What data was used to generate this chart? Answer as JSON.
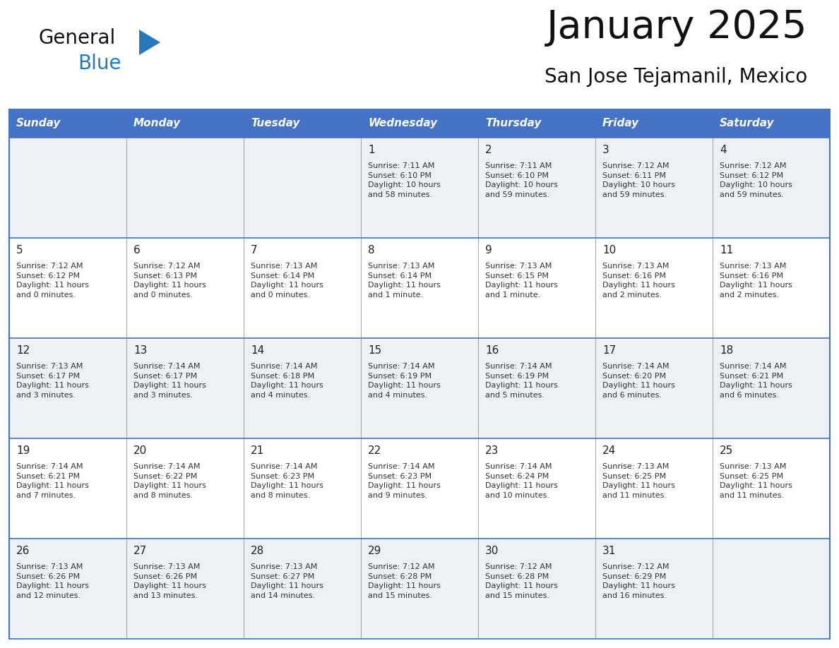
{
  "title": "January 2025",
  "subtitle": "San Jose Tejamanil, Mexico",
  "header_color": "#4472C4",
  "header_text_color": "#FFFFFF",
  "day_names": [
    "Sunday",
    "Monday",
    "Tuesday",
    "Wednesday",
    "Thursday",
    "Friday",
    "Saturday"
  ],
  "grid_line_color": "#4472C4",
  "row_alt_color": "#EEF0F7",
  "row_normal_color": "#FFFFFF",
  "day_number_color": "#222222",
  "text_color": "#333333",
  "title_color": "#111111",
  "subtitle_color": "#111111",
  "logo_general_color": "#111111",
  "logo_blue_color": "#2878BE",
  "logo_triangle_color": "#2878BE",
  "calendar": [
    [
      {
        "day": 0,
        "text": ""
      },
      {
        "day": 0,
        "text": ""
      },
      {
        "day": 0,
        "text": ""
      },
      {
        "day": 1,
        "text": "Sunrise: 7:11 AM\nSunset: 6:10 PM\nDaylight: 10 hours\nand 58 minutes."
      },
      {
        "day": 2,
        "text": "Sunrise: 7:11 AM\nSunset: 6:10 PM\nDaylight: 10 hours\nand 59 minutes."
      },
      {
        "day": 3,
        "text": "Sunrise: 7:12 AM\nSunset: 6:11 PM\nDaylight: 10 hours\nand 59 minutes."
      },
      {
        "day": 4,
        "text": "Sunrise: 7:12 AM\nSunset: 6:12 PM\nDaylight: 10 hours\nand 59 minutes."
      }
    ],
    [
      {
        "day": 5,
        "text": "Sunrise: 7:12 AM\nSunset: 6:12 PM\nDaylight: 11 hours\nand 0 minutes."
      },
      {
        "day": 6,
        "text": "Sunrise: 7:12 AM\nSunset: 6:13 PM\nDaylight: 11 hours\nand 0 minutes."
      },
      {
        "day": 7,
        "text": "Sunrise: 7:13 AM\nSunset: 6:14 PM\nDaylight: 11 hours\nand 0 minutes."
      },
      {
        "day": 8,
        "text": "Sunrise: 7:13 AM\nSunset: 6:14 PM\nDaylight: 11 hours\nand 1 minute."
      },
      {
        "day": 9,
        "text": "Sunrise: 7:13 AM\nSunset: 6:15 PM\nDaylight: 11 hours\nand 1 minute."
      },
      {
        "day": 10,
        "text": "Sunrise: 7:13 AM\nSunset: 6:16 PM\nDaylight: 11 hours\nand 2 minutes."
      },
      {
        "day": 11,
        "text": "Sunrise: 7:13 AM\nSunset: 6:16 PM\nDaylight: 11 hours\nand 2 minutes."
      }
    ],
    [
      {
        "day": 12,
        "text": "Sunrise: 7:13 AM\nSunset: 6:17 PM\nDaylight: 11 hours\nand 3 minutes."
      },
      {
        "day": 13,
        "text": "Sunrise: 7:14 AM\nSunset: 6:17 PM\nDaylight: 11 hours\nand 3 minutes."
      },
      {
        "day": 14,
        "text": "Sunrise: 7:14 AM\nSunset: 6:18 PM\nDaylight: 11 hours\nand 4 minutes."
      },
      {
        "day": 15,
        "text": "Sunrise: 7:14 AM\nSunset: 6:19 PM\nDaylight: 11 hours\nand 4 minutes."
      },
      {
        "day": 16,
        "text": "Sunrise: 7:14 AM\nSunset: 6:19 PM\nDaylight: 11 hours\nand 5 minutes."
      },
      {
        "day": 17,
        "text": "Sunrise: 7:14 AM\nSunset: 6:20 PM\nDaylight: 11 hours\nand 6 minutes."
      },
      {
        "day": 18,
        "text": "Sunrise: 7:14 AM\nSunset: 6:21 PM\nDaylight: 11 hours\nand 6 minutes."
      }
    ],
    [
      {
        "day": 19,
        "text": "Sunrise: 7:14 AM\nSunset: 6:21 PM\nDaylight: 11 hours\nand 7 minutes."
      },
      {
        "day": 20,
        "text": "Sunrise: 7:14 AM\nSunset: 6:22 PM\nDaylight: 11 hours\nand 8 minutes."
      },
      {
        "day": 21,
        "text": "Sunrise: 7:14 AM\nSunset: 6:23 PM\nDaylight: 11 hours\nand 8 minutes."
      },
      {
        "day": 22,
        "text": "Sunrise: 7:14 AM\nSunset: 6:23 PM\nDaylight: 11 hours\nand 9 minutes."
      },
      {
        "day": 23,
        "text": "Sunrise: 7:14 AM\nSunset: 6:24 PM\nDaylight: 11 hours\nand 10 minutes."
      },
      {
        "day": 24,
        "text": "Sunrise: 7:13 AM\nSunset: 6:25 PM\nDaylight: 11 hours\nand 11 minutes."
      },
      {
        "day": 25,
        "text": "Sunrise: 7:13 AM\nSunset: 6:25 PM\nDaylight: 11 hours\nand 11 minutes."
      }
    ],
    [
      {
        "day": 26,
        "text": "Sunrise: 7:13 AM\nSunset: 6:26 PM\nDaylight: 11 hours\nand 12 minutes."
      },
      {
        "day": 27,
        "text": "Sunrise: 7:13 AM\nSunset: 6:26 PM\nDaylight: 11 hours\nand 13 minutes."
      },
      {
        "day": 28,
        "text": "Sunrise: 7:13 AM\nSunset: 6:27 PM\nDaylight: 11 hours\nand 14 minutes."
      },
      {
        "day": 29,
        "text": "Sunrise: 7:12 AM\nSunset: 6:28 PM\nDaylight: 11 hours\nand 15 minutes."
      },
      {
        "day": 30,
        "text": "Sunrise: 7:12 AM\nSunset: 6:28 PM\nDaylight: 11 hours\nand 15 minutes."
      },
      {
        "day": 31,
        "text": "Sunrise: 7:12 AM\nSunset: 6:29 PM\nDaylight: 11 hours\nand 16 minutes."
      },
      {
        "day": 0,
        "text": ""
      }
    ]
  ]
}
